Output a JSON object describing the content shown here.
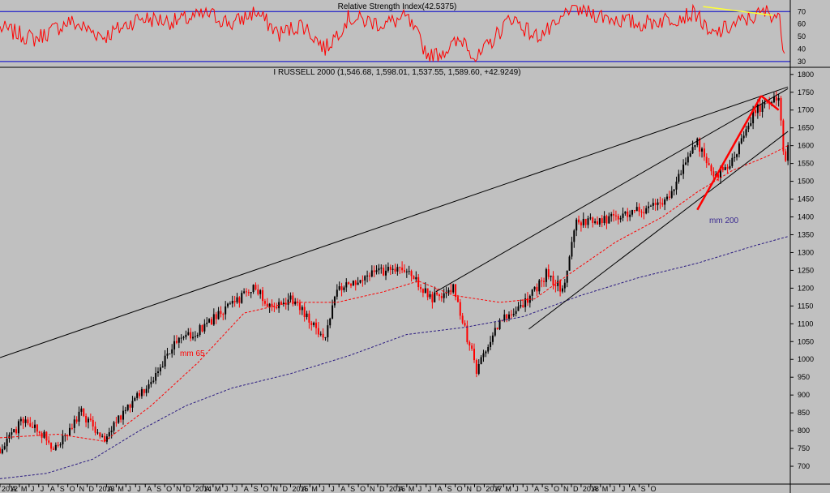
{
  "colors": {
    "background": "#c0c0c0",
    "rsi_line": "#ff0000",
    "rsi_levels": "#0000cc",
    "rsi_trend": "#ffff33",
    "price_up": "#000000",
    "price_down": "#ff0000",
    "ma65": "#ff0000",
    "ma200": "#2a1a80",
    "trendlines": "#000000",
    "highlight_line": "#ff0000"
  },
  "chart_data": [
    {
      "type": "line",
      "title": "Relative Strength Index(42.5375)",
      "ylim": [
        26,
        78
      ],
      "y_ticks": [
        "70",
        "60",
        "50",
        "40",
        "30"
      ],
      "levels": [
        70,
        30
      ],
      "approx_path": [
        [
          2012.0,
          57
        ],
        [
          2012.3,
          48
        ],
        [
          2012.6,
          62
        ],
        [
          2012.9,
          50
        ],
        [
          2013.2,
          65
        ],
        [
          2013.5,
          62
        ],
        [
          2013.8,
          68
        ],
        [
          2014.0,
          60
        ],
        [
          2014.2,
          70
        ],
        [
          2014.4,
          52
        ],
        [
          2014.6,
          60
        ],
        [
          2014.8,
          40
        ],
        [
          2015.0,
          65
        ],
        [
          2015.3,
          60
        ],
        [
          2015.5,
          65
        ],
        [
          2015.7,
          33
        ],
        [
          2016.0,
          48
        ],
        [
          2016.1,
          31
        ],
        [
          2016.4,
          66
        ],
        [
          2016.6,
          50
        ],
        [
          2016.8,
          58
        ],
        [
          2016.9,
          74
        ],
        [
          2017.2,
          66
        ],
        [
          2017.5,
          60
        ],
        [
          2017.8,
          65
        ],
        [
          2018.0,
          69
        ],
        [
          2018.1,
          50
        ],
        [
          2018.4,
          63
        ],
        [
          2018.6,
          70
        ],
        [
          2018.7,
          66
        ],
        [
          2018.75,
          38
        ]
      ],
      "trend_line_approx": [
        [
          2018.05,
          74
        ],
        [
          2018.65,
          67
        ]
      ]
    },
    {
      "type": "line",
      "title": "I RUSSELL 2000 (1,546.68, 1,598.01, 1,537.55, 1,589.60, +42.9249)",
      "ylim": [
        650,
        1820
      ],
      "y_ticks": [
        "1800",
        "1750",
        "1700",
        "1650",
        "1600",
        "1550",
        "1500",
        "1450",
        "1400",
        "1350",
        "1300",
        "1250",
        "1200",
        "1150",
        "1100",
        "1050",
        "1000",
        "950",
        "900",
        "850",
        "800",
        "750",
        "700"
      ],
      "x_ticks": [
        "2012",
        "A",
        "M",
        "J",
        "J",
        "A",
        "S",
        "O",
        "N",
        "D",
        "2013",
        "A",
        "M",
        "J",
        "J",
        "A",
        "S",
        "O",
        "N",
        "D",
        "2014",
        "A",
        "M",
        "J",
        "J",
        "A",
        "S",
        "O",
        "N",
        "D",
        "2015",
        "A",
        "M",
        "J",
        "J",
        "A",
        "S",
        "O",
        "N",
        "D",
        "2016",
        "A",
        "M",
        "J",
        "J",
        "A",
        "S",
        "O",
        "N",
        "D",
        "2017",
        "A",
        "M",
        "J",
        "J",
        "A",
        "S",
        "O",
        "N",
        "D",
        "2018",
        "A",
        "M",
        "J",
        "J",
        "A",
        "S",
        "O"
      ],
      "annotations": [
        "mm 65",
        "mm 200"
      ],
      "price_path_approx": [
        [
          2012.0,
          750
        ],
        [
          2012.2,
          830
        ],
        [
          2012.4,
          780
        ],
        [
          2012.45,
          740
        ],
        [
          2012.7,
          850
        ],
        [
          2012.9,
          780
        ],
        [
          2013.1,
          870
        ],
        [
          2013.3,
          940
        ],
        [
          2013.5,
          1040
        ],
        [
          2013.7,
          1080
        ],
        [
          2013.9,
          1130
        ],
        [
          2014.1,
          1180
        ],
        [
          2014.2,
          1210
        ],
        [
          2014.3,
          1140
        ],
        [
          2014.5,
          1170
        ],
        [
          2014.8,
          1060
        ],
        [
          2014.9,
          1200
        ],
        [
          2015.2,
          1240
        ],
        [
          2015.5,
          1260
        ],
        [
          2015.7,
          1170
        ],
        [
          2015.9,
          1200
        ],
        [
          2016.1,
          970
        ],
        [
          2016.3,
          1110
        ],
        [
          2016.5,
          1150
        ],
        [
          2016.7,
          1240
        ],
        [
          2016.85,
          1190
        ],
        [
          2016.95,
          1380
        ],
        [
          2017.2,
          1390
        ],
        [
          2017.5,
          1420
        ],
        [
          2017.7,
          1430
        ],
        [
          2018.0,
          1610
        ],
        [
          2018.15,
          1510
        ],
        [
          2018.3,
          1560
        ],
        [
          2018.5,
          1700
        ],
        [
          2018.7,
          1740
        ],
        [
          2018.75,
          1560
        ],
        [
          2018.78,
          1590
        ]
      ],
      "ma65_approx": [
        [
          2012.0,
          780
        ],
        [
          2012.5,
          790
        ],
        [
          2012.9,
          770
        ],
        [
          2013.3,
          870
        ],
        [
          2013.7,
          990
        ],
        [
          2014.1,
          1130
        ],
        [
          2014.5,
          1160
        ],
        [
          2014.9,
          1160
        ],
        [
          2015.3,
          1190
        ],
        [
          2015.6,
          1220
        ],
        [
          2015.9,
          1180
        ],
        [
          2016.3,
          1160
        ],
        [
          2016.6,
          1170
        ],
        [
          2016.9,
          1240
        ],
        [
          2017.3,
          1330
        ],
        [
          2017.7,
          1400
        ],
        [
          2018.0,
          1470
        ],
        [
          2018.3,
          1530
        ],
        [
          2018.6,
          1570
        ],
        [
          2018.78,
          1600
        ]
      ],
      "ma200_approx": [
        [
          2012.0,
          665
        ],
        [
          2012.4,
          680
        ],
        [
          2012.8,
          720
        ],
        [
          2013.2,
          800
        ],
        [
          2013.6,
          870
        ],
        [
          2014.0,
          920
        ],
        [
          2014.5,
          960
        ],
        [
          2015.0,
          1010
        ],
        [
          2015.5,
          1070
        ],
        [
          2016.0,
          1090
        ],
        [
          2016.5,
          1120
        ],
        [
          2017.0,
          1180
        ],
        [
          2017.5,
          1230
        ],
        [
          2018.0,
          1270
        ],
        [
          2018.5,
          1320
        ],
        [
          2018.78,
          1345
        ]
      ],
      "trendlines_approx": [
        [
          [
            2012.0,
            1005
          ],
          [
            2018.78,
            1765
          ]
        ],
        [
          [
            2015.75,
            1190
          ],
          [
            2018.78,
            1760
          ]
        ],
        [
          [
            2016.55,
            1085
          ],
          [
            2018.78,
            1640
          ]
        ]
      ],
      "highlight_lines_approx": [
        [
          [
            2018.0,
            1420
          ],
          [
            2018.55,
            1740
          ]
        ],
        [
          [
            2018.55,
            1740
          ],
          [
            2018.7,
            1700
          ]
        ]
      ]
    }
  ]
}
